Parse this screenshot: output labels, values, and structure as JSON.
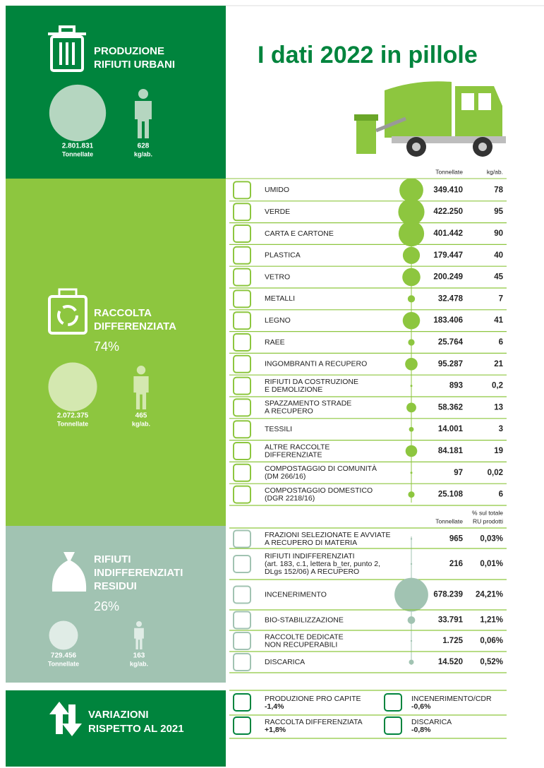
{
  "title": "I dati 2022 in pillole",
  "production": {
    "title_lines": [
      "PRODUZIONE",
      "RIFIUTI URBANI"
    ],
    "tonnes": "2.801.831",
    "tonnes_label": "Tonnellate",
    "per_capita": "628",
    "per_capita_label": "kg/ab."
  },
  "separate": {
    "title_lines": [
      "RACCOLTA",
      "DIFFERENZIATA"
    ],
    "share": "74%",
    "tonnes": "2.072.375",
    "tonnes_label": "Tonnellate",
    "per_capita": "465",
    "per_capita_label": "kg/ab.",
    "columns": {
      "tonnes": "Tonnellate",
      "per_capita": "kg/ab."
    },
    "rows": [
      {
        "label": [
          "UMIDO"
        ],
        "tonnes": "349.410",
        "per_capita": "78"
      },
      {
        "label": [
          "VERDE"
        ],
        "tonnes": "422.250",
        "per_capita": "95"
      },
      {
        "label": [
          "CARTA E CARTONE"
        ],
        "tonnes": "401.442",
        "per_capita": "90"
      },
      {
        "label": [
          "PLASTICA"
        ],
        "tonnes": "179.447",
        "per_capita": "40"
      },
      {
        "label": [
          "VETRO"
        ],
        "tonnes": "200.249",
        "per_capita": "45"
      },
      {
        "label": [
          "METALLI"
        ],
        "tonnes": "32.478",
        "per_capita": "7"
      },
      {
        "label": [
          "LEGNO"
        ],
        "tonnes": "183.406",
        "per_capita": "41"
      },
      {
        "label": [
          "RAEE"
        ],
        "tonnes": "25.764",
        "per_capita": "6"
      },
      {
        "label": [
          "INGOMBRANTI A RECUPERO"
        ],
        "tonnes": "95.287",
        "per_capita": "21"
      },
      {
        "label": [
          "RIFIUTI DA COSTRUZIONE",
          "E DEMOLIZIONE"
        ],
        "tonnes": "893",
        "per_capita": "0,2"
      },
      {
        "label": [
          "SPAZZAMENTO STRADE",
          "A RECUPERO"
        ],
        "tonnes": "58.362",
        "per_capita": "13"
      },
      {
        "label": [
          "TESSILI"
        ],
        "tonnes": "14.001",
        "per_capita": "3"
      },
      {
        "label": [
          "ALTRE RACCOLTE",
          "DIFFERENZIATE"
        ],
        "tonnes": "84.181",
        "per_capita": "19"
      },
      {
        "label": [
          "COMPOSTAGGIO DI COMUNITÀ",
          "(DM 266/16)"
        ],
        "tonnes": "97",
        "per_capita": "0,02"
      },
      {
        "label": [
          "COMPOSTAGGIO DOMESTICO",
          "(DGR 2218/16)"
        ],
        "tonnes": "25.108",
        "per_capita": "6"
      }
    ]
  },
  "residual": {
    "title_lines": [
      "RIFIUTI",
      "INDIFFERENZIATI",
      "RESIDUI"
    ],
    "share": "26%",
    "tonnes": "729.456",
    "tonnes_label": "Tonnellate",
    "per_capita": "163",
    "per_capita_label": "kg/ab.",
    "columns": {
      "tonnes": "Tonnellate",
      "share": [
        "% sul totale",
        "RU prodotti"
      ]
    },
    "rows": [
      {
        "label": [
          "FRAZIONI SELEZIONATE E AVVIATE",
          "A RECUPERO DI MATERIA"
        ],
        "tonnes": "965",
        "share": "0,03%"
      },
      {
        "label": [
          "RIFIUTI INDIFFERENZIATI",
          "(art. 183, c.1, lettera b_ter, punto 2,",
          "DLgs 152/06) A RECUPERO"
        ],
        "tonnes": "216",
        "share": "0,01%"
      },
      {
        "label": [
          "INCENERIMENTO"
        ],
        "tonnes": "678.239",
        "share": "24,21%"
      },
      {
        "label": [
          "BIO-STABILIZZAZIONE"
        ],
        "tonnes": "33.791",
        "share": "1,21%"
      },
      {
        "label": [
          "RACCOLTE DEDICATE",
          "NON RECUPERABILI"
        ],
        "tonnes": "1.725",
        "share": "0,06%"
      },
      {
        "label": [
          "DISCARICA"
        ],
        "tonnes": "14.520",
        "share": "0,52%"
      }
    ]
  },
  "changes": {
    "title_lines": [
      "VARIAZIONI",
      "RISPETTO AL 2021"
    ],
    "items": [
      {
        "label": "PRODUZIONE PRO CAPITE",
        "value": "-1,4%"
      },
      {
        "label": "INCENERIMENTO/CDR",
        "value": "-0,6%"
      },
      {
        "label": "RACCOLTA DIFFERENZIATA",
        "value": "+1,8%"
      },
      {
        "label": "DISCARICA",
        "value": "-0,8%"
      }
    ]
  }
}
